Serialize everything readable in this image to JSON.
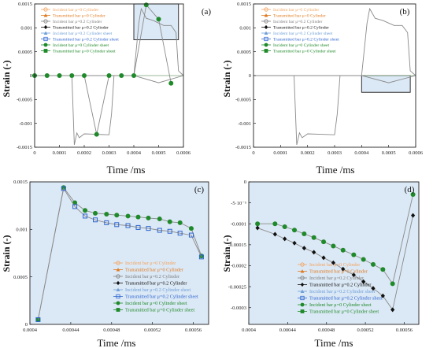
{
  "colors": {
    "incident_cyl": "#f4a460",
    "transmitted_cyl": "#e07a20",
    "incident_02": "#808080",
    "transmitted_02": "#111111",
    "incident_sheet02": "#6f9fd8",
    "transmitted_sheet02": "#2f66d0",
    "incident_sheet0": "#1f8a2a",
    "transmitted_sheet0": "#1f8a2a",
    "zoom_fill": "#dbe8f5",
    "zoom_stroke": "#333333"
  },
  "chart_data": [
    {
      "panel": "(a)",
      "type": "line",
      "xlabel": "Time /ms",
      "ylabel": "Strain (-)",
      "xlim": [
        0,
        0.0006
      ],
      "ylim": [
        -0.0015,
        0.0015
      ],
      "xticks": [
        "0",
        "0.0001",
        "0.0002",
        "0.0003",
        "0.0004",
        "0.0005",
        "0.0006"
      ],
      "yticks": [
        "-0.0015",
        "-0.001",
        "-0.0005",
        "0",
        "0.0005",
        "0.001",
        "0.0015"
      ],
      "legend": [
        "Incident bar μ=0 Cylinder",
        "Transmitted bar μ=0 Cylinder",
        "Incident bar μ=0.2 Cylinder",
        "Transmitted bar μ=0.2 Cylinder",
        "Incident bar μ=0.2 Cylinder sheet",
        "Transmitted bar μ=0.2 Cylinder sheet",
        "Incident bar μ=0 Cylinder sheet",
        "Transmitted bar μ=0 Cylinder sheet"
      ],
      "legend_position": "top-left",
      "zoom_box": {
        "x": [
          0.0004,
          0.00058
        ],
        "y": [
          0.00075,
          0.0015
        ]
      },
      "series": [
        {
          "name": "Incident bar μ=0 Cylinder",
          "x": [
            0,
            0.00015,
            0.00016,
            0.00017,
            0.00018,
            0.0002,
            0.00025,
            0.0003,
            0.00031,
            0.00032,
            0.00035,
            0.0004,
            0.0005,
            0.0006
          ],
          "y": [
            0,
            0,
            -0.00145,
            -0.0012,
            -0.0013,
            -0.00122,
            -0.00123,
            -0.00124,
            -0.0008,
            0,
            0,
            0,
            -0.00015,
            0
          ]
        },
        {
          "name": "Transmitted bar μ=0 Cylinder",
          "x": [
            0,
            0.0004,
            0.00042,
            0.00043,
            0.00045,
            0.00048,
            0.0005,
            0.00052,
            0.00055,
            0.00057,
            0.00058,
            0.0006
          ],
          "y": [
            0,
            0,
            0.0011,
            0.0014,
            0.0012,
            0.00115,
            0.0011,
            0.00105,
            0.00105,
            0.0009,
            0.0001,
            0
          ]
        },
        {
          "name": "Transmitted bar μ=0 Cylinder sheet",
          "x": [
            0,
            5e-05,
            0.0001,
            0.00015,
            0.0002,
            0.00025,
            0.0003,
            0.00035,
            0.0004,
            0.00045,
            0.0005,
            0.00055
          ],
          "y": [
            0,
            0,
            0,
            0,
            0,
            -0.00123,
            0,
            0,
            0,
            0.00148,
            0.00118,
            -0.00016
          ]
        }
      ]
    },
    {
      "panel": "(b)",
      "type": "line",
      "xlabel": "Time /ms",
      "ylabel": "Strain (-)",
      "xlim": [
        0,
        0.0006
      ],
      "ylim": [
        -0.0015,
        0.0015
      ],
      "xticks": [
        "0",
        "0.0001",
        "0.0002",
        "0.0003",
        "0.0004",
        "0.0005",
        "0.0006"
      ],
      "yticks": [
        "-0.0015",
        "-0.001",
        "-0.0005",
        "0",
        "0.0005",
        "0.001",
        "0.0015"
      ],
      "legend": [
        "Incident bar μ=0 Cylinder",
        "Transmitted bar μ=0 Cylinder",
        "Incident bar μ=0.2 Cylinder",
        "Transmitted bar μ=0.2 Cylinder",
        "Incident bar μ=0.2 Cylinder sheet",
        "Transmitted bar μ=0.2 Cylinder sheet",
        "Incident bar μ=0 Cylinder sheet",
        "Transmitted bar μ=0 Cylinder sheet"
      ],
      "legend_position": "top-left",
      "zoom_box": {
        "x": [
          0.0004,
          0.00058
        ],
        "y": [
          -0.00035,
          0
        ]
      },
      "series": [
        {
          "name": "Incident bar μ=0 Cylinder",
          "x": [
            0,
            0.00015,
            0.00016,
            0.00017,
            0.00018,
            0.0002,
            0.00025,
            0.0003,
            0.00031,
            0.00032,
            0.00035,
            0.0004,
            0.0005,
            0.0006
          ],
          "y": [
            0,
            0,
            -0.00145,
            -0.0012,
            -0.0013,
            -0.00122,
            -0.00123,
            -0.00124,
            -0.0008,
            0,
            0,
            0,
            -0.00015,
            0
          ]
        },
        {
          "name": "Transmitted bar μ=0 Cylinder",
          "x": [
            0,
            0.0004,
            0.00042,
            0.00043,
            0.00045,
            0.00048,
            0.0005,
            0.00052,
            0.00055,
            0.00057,
            0.00058,
            0.0006
          ],
          "y": [
            0,
            0,
            0.0011,
            0.0014,
            0.0012,
            0.00115,
            0.0011,
            0.00105,
            0.00105,
            0.0009,
            0.0001,
            0
          ]
        }
      ]
    },
    {
      "panel": "(c)",
      "type": "line",
      "xlabel": "Time /ms",
      "ylabel": "Strain (-)",
      "xlim": [
        0.0004,
        0.000575
      ],
      "ylim": [
        0,
        0.0015
      ],
      "xticks": [
        "0.0004",
        "0.00044",
        "0.00048",
        "0.00052",
        "0.00056"
      ],
      "yticks": [
        "0",
        "0.0005",
        "0.001",
        "0.0015"
      ],
      "legend": [
        "Incident bar μ=0 Cylinder",
        "Transmitted bar μ=0 Cylinder",
        "Incident bar μ=0.2 Cylinder",
        "Transmitted bar μ=0.2 Cylinder",
        "Incident bar μ=0.2 Cylinder sheet",
        "Transmitted bar μ=0.2 Cylinder sheet",
        "Incident bar μ=0 Cylinder sheet",
        "Transmitted bar μ=0 Cylinder sheet"
      ],
      "legend_position": "bottom-right",
      "series": [
        {
          "name": "Transmitted bar μ=0 Cylinder sheet",
          "x": [
            0.000408,
            0.000433,
            0.000444,
            0.000454,
            0.000464,
            0.000475,
            0.000485,
            0.000496,
            0.000506,
            0.000516,
            0.000527,
            0.000537,
            0.000547,
            0.000558,
            0.000568
          ],
          "y": [
            5e-05,
            0.00144,
            0.00128,
            0.0012,
            0.00117,
            0.00116,
            0.00115,
            0.00114,
            0.00113,
            0.00112,
            0.00111,
            0.00108,
            0.00107,
            0.00101,
            0.00072
          ]
        },
        {
          "name": "Transmitted bar μ=0.2 Cylinder sheet",
          "x": [
            0.000408,
            0.000433,
            0.000444,
            0.000454,
            0.000464,
            0.000475,
            0.000485,
            0.000496,
            0.000506,
            0.000516,
            0.000527,
            0.000537,
            0.000547,
            0.000558,
            0.000568
          ],
          "y": [
            5e-05,
            0.00143,
            0.00124,
            0.00114,
            0.0011,
            0.00107,
            0.00105,
            0.00104,
            0.00102,
            0.00101,
            0.00099,
            0.00098,
            0.00096,
            0.00094,
            0.00071
          ]
        }
      ]
    },
    {
      "panel": "(d)",
      "type": "line",
      "xlabel": "Time /ms",
      "ylabel": "Strain (-)",
      "xlim": [
        0.0004,
        0.000575
      ],
      "ylim": [
        -0.00034,
        0
      ],
      "xticks": [
        "0.0004",
        "0.00044",
        "0.00048",
        "0.00052",
        "0.00056"
      ],
      "yticks": [
        "0",
        "-5·10⁻⁵",
        "-0.0001",
        "-0.00015",
        "-0.0002",
        "-0.00025",
        "-0.0003"
      ],
      "legend": [
        "Incident bar μ=0 Cylinder",
        "Transmitted bar μ=0 Cylinder",
        "Incident bar μ=0.2 Cylinder",
        "Transmitted bar μ=0.2 Cylinder",
        "Incident bar μ=0.2 Cylinder sheet",
        "Transmitted bar μ=0.2 Cylinder sheet",
        "Incident bar μ=0 Cylinder sheet",
        "Transmitted bar μ=0 Cylinder sheet"
      ],
      "legend_position": "bottom-center",
      "series": [
        {
          "name": "Incident bar μ=0 Cylinder sheet",
          "x": [
            0.000409,
            0.000427,
            0.000437,
            0.000447,
            0.000457,
            0.000467,
            0.000477,
            0.000487,
            0.000497,
            0.000508,
            0.000518,
            0.000528,
            0.000538,
            0.000548,
            0.000569
          ],
          "y": [
            -0.0001,
            -0.0001,
            -0.000107,
            -0.000115,
            -0.000124,
            -0.000133,
            -0.000143,
            -0.000153,
            -0.000163,
            -0.000174,
            -0.000185,
            -0.000197,
            -0.000209,
            -0.000243,
            -3e-05
          ]
        },
        {
          "name": "Transmitted bar μ=0.2 Cylinder",
          "x": [
            0.000409,
            0.000427,
            0.000437,
            0.000447,
            0.000457,
            0.000467,
            0.000477,
            0.000487,
            0.000497,
            0.000508,
            0.000518,
            0.000528,
            0.000538,
            0.000548,
            0.000569
          ],
          "y": [
            -0.00011,
            -0.000125,
            -0.000136,
            -0.000146,
            -0.000158,
            -0.000168,
            -0.000181,
            -0.000193,
            -0.000208,
            -0.000222,
            -0.000238,
            -0.000254,
            -0.000272,
            -0.000305,
            -8e-05
          ]
        }
      ]
    }
  ]
}
